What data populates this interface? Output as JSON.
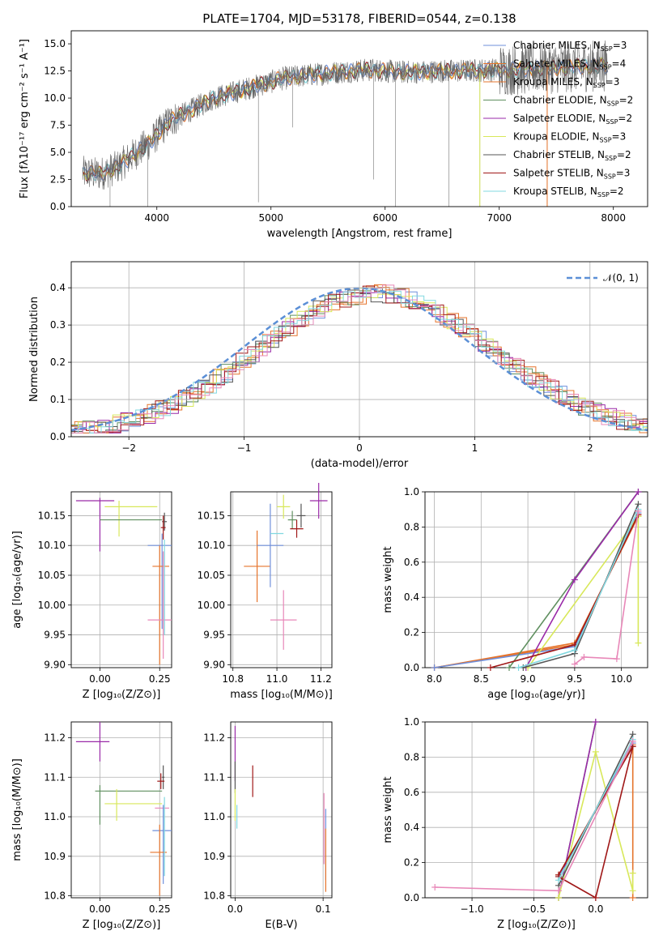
{
  "colors": {
    "chabrier_miles": "#6f8fdb",
    "salpeter_miles": "#e6742c",
    "kroupa_miles": "#e6742c",
    "chabrier_elodie": "#5f8f5f",
    "salpeter_elodie": "#9a2aa8",
    "kroupa_elodie": "#d8e85a",
    "chabrier_stelib": "#555555",
    "salpeter_stelib": "#a01818",
    "kroupa_stelib": "#80d8e0",
    "pink": "#e887b8",
    "normal": "#5b8fd6"
  },
  "chart_data": [
    {
      "id": "spectrum",
      "type": "line",
      "title": "PLATE=1704, MJD=53178, FIBERID=0544, z=0.138",
      "xlabel": "wavelength [Angstrom, rest frame]",
      "ylabel": "Flux [fλ10⁻¹⁷ erg cm⁻² s⁻¹ A⁻¹]",
      "xlim": [
        3250,
        8300
      ],
      "ylim": [
        0,
        16.2
      ],
      "xticks": [
        4000,
        5000,
        6000,
        7000,
        8000
      ],
      "yticks": [
        0.0,
        2.5,
        5.0,
        7.5,
        10.0,
        12.5,
        15.0
      ],
      "grid": false,
      "legend_position": "top-right",
      "legend": [
        {
          "label": "Chabrier MILES, N",
          "sub": "SSP",
          "suffix": "=3",
          "color": "#6f8fdb"
        },
        {
          "label": "Salpeter MILES, N",
          "sub": "SSP",
          "suffix": "=4",
          "color": "#e6742c"
        },
        {
          "label": "Kroupa MILES, N",
          "sub": "SSP",
          "suffix": "=3",
          "color": "#e6742c"
        },
        {
          "label": "Chabrier ELODIE, N",
          "sub": "SSP",
          "suffix": "=2",
          "color": "#5f8f5f"
        },
        {
          "label": "Salpeter ELODIE, N",
          "sub": "SSP",
          "suffix": "=2",
          "color": "#9a2aa8"
        },
        {
          "label": "Kroupa ELODIE, N",
          "sub": "SSP",
          "suffix": "=3",
          "color": "#d8e85a"
        },
        {
          "label": "Chabrier STELIB, N",
          "sub": "SSP",
          "suffix": "=2",
          "color": "#555555"
        },
        {
          "label": "Salpeter STELIB, N",
          "sub": "SSP",
          "suffix": "=3",
          "color": "#a01818"
        },
        {
          "label": "Kroupa STELIB, N",
          "sub": "SSP",
          "suffix": "=2",
          "color": "#80d8e0"
        }
      ],
      "continuum": {
        "x": [
          3350,
          3500,
          3650,
          3800,
          3950,
          4100,
          4300,
          4500,
          4700,
          4900,
          5100,
          5300,
          5500,
          5700,
          5900,
          6100,
          6300,
          6500,
          6700,
          6900,
          7100,
          7300,
          7500,
          7700,
          7900
        ],
        "y": [
          3.1,
          3.0,
          3.6,
          4.8,
          6.0,
          7.8,
          8.9,
          10.0,
          10.6,
          11.2,
          11.8,
          12.1,
          12.3,
          12.5,
          12.6,
          12.4,
          12.4,
          12.5,
          12.5,
          12.6,
          12.6,
          12.7,
          12.8,
          12.9,
          13.0
        ]
      }
    },
    {
      "id": "residuals",
      "type": "step",
      "xlabel": "(data-model)/error",
      "ylabel": "Normed distribution",
      "xlim": [
        -2.5,
        2.5
      ],
      "ylim": [
        0,
        0.47
      ],
      "xticks": [
        -2,
        -1,
        0,
        1,
        2
      ],
      "yticks": [
        0.0,
        0.1,
        0.2,
        0.3,
        0.4
      ],
      "grid": true,
      "legend_position": "top-right",
      "legend": [
        {
          "label": "𝒩(0, 1)",
          "color": "#5b8fd6",
          "style": "dashed"
        }
      ],
      "bin_width": 0.1,
      "envelope_center": 0.15,
      "envelope_sigma": 1.02,
      "envelope_peak": 0.385
    },
    {
      "id": "age_vs_Z",
      "type": "errorbar",
      "xlabel": "Z [log₁₀(Z/Z⊙)]",
      "ylabel": "age  [log₁₀(age/yr)]",
      "xlim": [
        -0.12,
        0.3
      ],
      "ylim": [
        9.895,
        10.19
      ],
      "xticks": [
        0.0,
        0.25
      ],
      "xticklabels": [
        "0.00",
        "0.25"
      ],
      "yticks": [
        9.9,
        9.95,
        10.0,
        10.05,
        10.1,
        10.15
      ],
      "yticklabels": [
        "9.90",
        "9.95",
        "10.00",
        "10.05",
        "10.10",
        "10.15"
      ],
      "grid": true,
      "points": [
        {
          "x": -0.02,
          "y": 10.175,
          "xerr": 0.08,
          "yerr": 0.0,
          "color": "#9a2aa8"
        },
        {
          "x": 0.0,
          "y": 10.135,
          "xerr": 0.0,
          "yerr": 0.045,
          "color": "#9a2aa8"
        },
        {
          "x": 0.13,
          "y": 10.165,
          "xerr": 0.11,
          "yerr": 0.0,
          "color": "#d8e85a"
        },
        {
          "x": 0.08,
          "y": 10.145,
          "xerr": 0.0,
          "yerr": 0.03,
          "color": "#d8e85a"
        },
        {
          "x": 0.13,
          "y": 10.143,
          "xerr": 0.13,
          "yerr": 0.0,
          "color": "#5f8f5f"
        },
        {
          "x": 0.27,
          "y": 10.14,
          "xerr": 0.01,
          "yerr": 0.015,
          "color": "#555555"
        },
        {
          "x": 0.265,
          "y": 10.13,
          "xerr": 0.01,
          "yerr": 0.02,
          "color": "#a01818"
        },
        {
          "x": 0.25,
          "y": 10.1,
          "xerr": 0.05,
          "yerr": 0.0,
          "color": "#6f8fdb"
        },
        {
          "x": 0.26,
          "y": 10.04,
          "xerr": 0.0,
          "yerr": 0.08,
          "color": "#6f8fdb"
        },
        {
          "x": 0.255,
          "y": 10.065,
          "xerr": 0.035,
          "yerr": 0.0,
          "color": "#e6742c"
        },
        {
          "x": 0.25,
          "y": 10.0,
          "xerr": 0.0,
          "yerr": 0.1,
          "color": "#e6742c"
        },
        {
          "x": 0.25,
          "y": 9.975,
          "xerr": 0.05,
          "yerr": 0.0,
          "color": "#e887b8"
        },
        {
          "x": 0.265,
          "y": 10.0,
          "xerr": 0.0,
          "yerr": 0.09,
          "color": "#e887b8"
        },
        {
          "x": 0.27,
          "y": 10.03,
          "xerr": 0.0,
          "yerr": 0.08,
          "color": "#80d8e0"
        }
      ]
    },
    {
      "id": "age_vs_mass",
      "type": "errorbar",
      "xlabel": "mass [log₁₀(M/M⊙)]",
      "xlim": [
        10.79,
        11.25
      ],
      "ylim": [
        9.895,
        10.19
      ],
      "xticks": [
        10.8,
        11.0,
        11.2
      ],
      "xticklabels": [
        "10.8",
        "11.0",
        "11.2"
      ],
      "yticks": [
        9.9,
        9.95,
        10.0,
        10.05,
        10.1,
        10.15
      ],
      "yticklabels": [
        "9.90",
        "9.95",
        "10.00",
        "10.05",
        "10.10",
        "10.15"
      ],
      "grid": true,
      "points": [
        {
          "x": 10.91,
          "y": 10.065,
          "xerr": 0.06,
          "yerr": 0.06,
          "color": "#e6742c"
        },
        {
          "x": 10.97,
          "y": 10.1,
          "xerr": 0.06,
          "yerr": 0.07,
          "color": "#6f8fdb"
        },
        {
          "x": 11.0,
          "y": 10.12,
          "xerr": 0.03,
          "yerr": 0.0,
          "color": "#80d8e0"
        },
        {
          "x": 11.03,
          "y": 9.975,
          "xerr": 0.06,
          "yerr": 0.05,
          "color": "#e887b8"
        },
        {
          "x": 11.03,
          "y": 10.165,
          "xerr": 0.03,
          "yerr": 0.02,
          "color": "#d8e85a"
        },
        {
          "x": 11.07,
          "y": 10.143,
          "xerr": 0.02,
          "yerr": 0.015,
          "color": "#5f8f5f"
        },
        {
          "x": 11.09,
          "y": 10.128,
          "xerr": 0.03,
          "yerr": 0.015,
          "color": "#a01818"
        },
        {
          "x": 11.11,
          "y": 10.15,
          "xerr": 0.02,
          "yerr": 0.02,
          "color": "#555555"
        },
        {
          "x": 11.19,
          "y": 10.175,
          "xerr": 0.04,
          "yerr": 0.03,
          "color": "#9a2aa8"
        }
      ]
    },
    {
      "id": "weight_vs_age",
      "type": "line",
      "xlabel": "age  [log₁₀(age/yr)]",
      "ylabel": "mass weight",
      "xlim": [
        7.9,
        10.28
      ],
      "ylim": [
        0,
        1.0
      ],
      "xticks": [
        8.0,
        8.5,
        9.0,
        9.5,
        10.0
      ],
      "xticklabels": [
        "8.0",
        "8.5",
        "9.0",
        "9.5",
        "10.0"
      ],
      "yticks": [
        0.0,
        0.2,
        0.4,
        0.6,
        0.8,
        1.0
      ],
      "yticklabels": [
        "0.0",
        "0.2",
        "0.4",
        "0.6",
        "0.8",
        "1.0"
      ],
      "grid": true,
      "series": [
        {
          "x": [
            8.0,
            9.5,
            10.18
          ],
          "y": [
            0.0,
            0.13,
            0.87
          ],
          "color": "#e6742c"
        },
        {
          "x": [
            8.0,
            9.5,
            10.18
          ],
          "y": [
            0.0,
            0.14,
            0.86
          ],
          "color": "#e6742c"
        },
        {
          "x": [
            8.0,
            9.5,
            10.18
          ],
          "y": [
            0.0,
            0.12,
            0.88
          ],
          "color": "#6f8fdb"
        },
        {
          "x": [
            8.8,
            10.18
          ],
          "y": [
            0.0,
            1.0
          ],
          "color": "#5f8f5f"
        },
        {
          "x": [
            8.98,
            9.5,
            10.18
          ],
          "y": [
            0.0,
            0.5,
            1.0
          ],
          "color": "#9a2aa8"
        },
        {
          "x": [
            9.0,
            10.18,
            10.18
          ],
          "y": [
            0.0,
            0.86,
            0.14
          ],
          "color": "#d8e85a"
        },
        {
          "x": [
            8.95,
            9.5,
            10.18
          ],
          "y": [
            0.0,
            0.08,
            0.93
          ],
          "color": "#555555"
        },
        {
          "x": [
            8.6,
            9.5,
            10.18
          ],
          "y": [
            0.0,
            0.13,
            0.87
          ],
          "color": "#a01818"
        },
        {
          "x": [
            8.9,
            9.5,
            10.18
          ],
          "y": [
            0.0,
            0.1,
            0.9
          ],
          "color": "#80d8e0"
        },
        {
          "x": [
            9.5,
            9.6,
            9.95,
            10.18
          ],
          "y": [
            0.02,
            0.06,
            0.05,
            0.89
          ],
          "color": "#e887b8"
        }
      ]
    },
    {
      "id": "mass_vs_Z",
      "type": "errorbar",
      "xlabel": "Z [log₁₀(Z/Z⊙)]",
      "ylabel": "mass [log₁₀(M/M⊙)]",
      "xlim": [
        -0.12,
        0.3
      ],
      "ylim": [
        10.795,
        11.24
      ],
      "xticks": [
        0.0,
        0.25
      ],
      "xticklabels": [
        "0.00",
        "0.25"
      ],
      "yticks": [
        10.8,
        10.9,
        11.0,
        11.1,
        11.2
      ],
      "yticklabels": [
        "10.8",
        "10.9",
        "11.0",
        "11.1",
        "11.2"
      ],
      "grid": true,
      "points": [
        {
          "x": -0.03,
          "y": 11.19,
          "xerr": 0.07,
          "yerr": 0.0,
          "color": "#9a2aa8"
        },
        {
          "x": 0.0,
          "y": 11.19,
          "xerr": 0.0,
          "yerr": 0.05,
          "color": "#9a2aa8"
        },
        {
          "x": 0.12,
          "y": 11.065,
          "xerr": 0.14,
          "yerr": 0.0,
          "color": "#5f8f5f"
        },
        {
          "x": 0.0,
          "y": 11.03,
          "xerr": 0.0,
          "yerr": 0.05,
          "color": "#5f8f5f"
        },
        {
          "x": 0.14,
          "y": 11.033,
          "xerr": 0.12,
          "yerr": 0.0,
          "color": "#d8e85a"
        },
        {
          "x": 0.07,
          "y": 11.03,
          "xerr": 0.0,
          "yerr": 0.04,
          "color": "#d8e85a"
        },
        {
          "x": 0.265,
          "y": 11.1,
          "xerr": 0.005,
          "yerr": 0.03,
          "color": "#555555"
        },
        {
          "x": 0.255,
          "y": 11.09,
          "xerr": 0.015,
          "yerr": 0.02,
          "color": "#a01818"
        },
        {
          "x": 0.26,
          "y": 11.022,
          "xerr": 0.03,
          "yerr": 0.0,
          "color": "#e887b8"
        },
        {
          "x": 0.26,
          "y": 10.965,
          "xerr": 0.04,
          "yerr": 0.0,
          "color": "#6f8fdb"
        },
        {
          "x": 0.265,
          "y": 10.93,
          "xerr": 0.0,
          "yerr": 0.1,
          "color": "#6f8fdb"
        },
        {
          "x": 0.245,
          "y": 10.91,
          "xerr": 0.035,
          "yerr": 0.0,
          "color": "#e6742c"
        },
        {
          "x": 0.25,
          "y": 10.89,
          "xerr": 0.0,
          "yerr": 0.09,
          "color": "#e6742c"
        },
        {
          "x": 0.27,
          "y": 10.95,
          "xerr": 0.0,
          "yerr": 0.1,
          "color": "#80d8e0"
        }
      ]
    },
    {
      "id": "mass_vs_ebv",
      "type": "errorbar",
      "xlabel": "E(B-V)",
      "xlim": [
        -0.005,
        0.11
      ],
      "ylim": [
        10.795,
        11.24
      ],
      "xticks": [
        0.0,
        0.1
      ],
      "xticklabels": [
        "0.0",
        "0.1"
      ],
      "yticks": [
        10.8,
        10.9,
        11.0,
        11.1,
        11.2
      ],
      "yticklabels": [
        "10.8",
        "10.9",
        "11.0",
        "11.1",
        "11.2"
      ],
      "grid": true,
      "points": [
        {
          "x": 0.0,
          "y": 11.16,
          "xerr": 0.0,
          "yerr": 0.07,
          "color": "#9a2aa8"
        },
        {
          "x": 0.0,
          "y": 11.1,
          "xerr": 0.0,
          "yerr": 0.04,
          "color": "#555555"
        },
        {
          "x": 0.0,
          "y": 11.03,
          "xerr": 0.0,
          "yerr": 0.04,
          "color": "#d8e85a"
        },
        {
          "x": 0.002,
          "y": 11.0,
          "xerr": 0.0,
          "yerr": 0.03,
          "color": "#80d8e0"
        },
        {
          "x": 0.02,
          "y": 11.09,
          "xerr": 0.0,
          "yerr": 0.04,
          "color": "#a01818"
        },
        {
          "x": 0.101,
          "y": 10.97,
          "xerr": 0.0,
          "yerr": 0.09,
          "color": "#e887b8"
        },
        {
          "x": 0.103,
          "y": 10.93,
          "xerr": 0.0,
          "yerr": 0.09,
          "color": "#6f8fdb"
        },
        {
          "x": 0.103,
          "y": 10.89,
          "xerr": 0.0,
          "yerr": 0.08,
          "color": "#e6742c"
        }
      ]
    },
    {
      "id": "weight_vs_Z",
      "type": "line",
      "xlabel": "Z [log₁₀(Z/Z⊙)]",
      "ylabel": "mass weight",
      "xlim": [
        -1.38,
        0.42
      ],
      "ylim": [
        0,
        1.0
      ],
      "xticks": [
        -1.0,
        -0.5,
        0.0
      ],
      "xticklabels": [
        "−1.0",
        "−0.5",
        "0.0"
      ],
      "yticks": [
        0.0,
        0.2,
        0.4,
        0.6,
        0.8,
        1.0
      ],
      "yticklabels": [
        "0.0",
        "0.2",
        "0.4",
        "0.6",
        "0.8",
        "1.0"
      ],
      "grid": true,
      "series": [
        {
          "x": [
            -0.3,
            0.3,
            0.3
          ],
          "y": [
            0.13,
            0.87,
            0.0
          ],
          "color": "#e6742c"
        },
        {
          "x": [
            -0.3,
            0.3
          ],
          "y": [
            0.12,
            0.88
          ],
          "color": "#6f8fdb"
        },
        {
          "x": [
            -0.3,
            0.0
          ],
          "y": [
            0.0,
            1.0
          ],
          "color": "#5f8f5f"
        },
        {
          "x": [
            -0.3,
            0.0
          ],
          "y": [
            0.0,
            1.0
          ],
          "color": "#9a2aa8"
        },
        {
          "x": [
            -0.3,
            0.0,
            0.3,
            0.3
          ],
          "y": [
            0.0,
            0.83,
            0.04,
            0.14
          ],
          "color": "#d8e85a"
        },
        {
          "x": [
            -0.3,
            0.3
          ],
          "y": [
            0.07,
            0.93
          ],
          "color": "#555555"
        },
        {
          "x": [
            -0.3,
            0.0,
            0.3,
            -0.3
          ],
          "y": [
            0.12,
            0.0,
            0.86,
            0.13
          ],
          "color": "#a01818"
        },
        {
          "x": [
            -0.3,
            0.3
          ],
          "y": [
            0.1,
            0.9
          ],
          "color": "#80d8e0"
        },
        {
          "x": [
            -1.3,
            -0.3,
            0.3
          ],
          "y": [
            0.06,
            0.04,
            0.89
          ],
          "color": "#e887b8"
        }
      ]
    }
  ]
}
